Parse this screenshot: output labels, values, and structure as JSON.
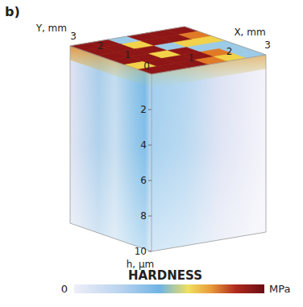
{
  "panel": "b)",
  "chart_data": {
    "type": "volume",
    "title": "HARDNESS",
    "origin": 0,
    "x_label": "X, mm",
    "xlim": [
      0,
      3
    ],
    "xticks": [
      1,
      2,
      3
    ],
    "y_label": "Y, mm",
    "ylim": [
      0,
      3
    ],
    "yticks": [
      1,
      2,
      3
    ],
    "h_label": "h, µm",
    "hlim": [
      0,
      10
    ],
    "hticks": [
      2,
      4,
      6,
      8,
      10
    ],
    "colorbar": {
      "min": 0,
      "unit": "MPa"
    }
  }
}
